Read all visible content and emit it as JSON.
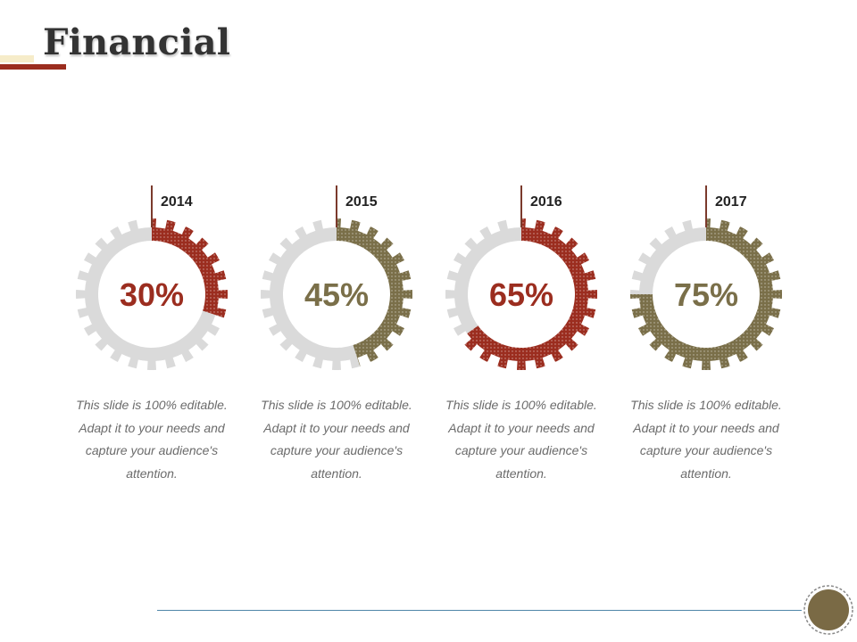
{
  "title": "Financial",
  "colors": {
    "accent_red": "#9b2d1f",
    "accent_olive": "#7a6f49",
    "track_gray": "#dadada",
    "text_dark": "#222222",
    "caption_gray": "#6b6b6b",
    "footer_line": "#4f86a8",
    "badge_fill": "#7a6a45"
  },
  "gauges": [
    {
      "year": "2014",
      "percent_label": "30%",
      "value": 30,
      "color": "#9b2d1f",
      "caption": "This slide is 100% editable. Adapt it to your needs and capture your audience's attention."
    },
    {
      "year": "2015",
      "percent_label": "45%",
      "value": 45,
      "color": "#7a6f49",
      "caption": "This slide is 100% editable. Adapt it to your needs and capture your audience's attention."
    },
    {
      "year": "2016",
      "percent_label": "65%",
      "value": 65,
      "color": "#9b2d1f",
      "caption": "This slide is 100% editable. Adapt it to your needs and capture your audience's attention."
    },
    {
      "year": "2017",
      "percent_label": "75%",
      "value": 75,
      "color": "#7a6f49",
      "caption": "This slide is 100% editable. Adapt it to your needs and capture your audience's attention."
    }
  ]
}
